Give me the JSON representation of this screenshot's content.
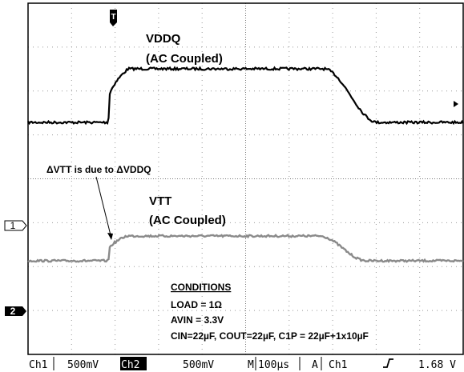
{
  "markers": {
    "trigger": "T",
    "ch1": "1",
    "ch2": "2"
  },
  "labels": {
    "vddq": "VDDQ",
    "vddq_note": "(AC Coupled)",
    "annotation": "ΔVTT is due to ΔVDDQ",
    "vtt": "VTT",
    "vtt_note": "(AC Coupled)"
  },
  "conditions": {
    "heading": "CONDITIONS",
    "lines": [
      "LOAD = 1Ω",
      "AVIN = 3.3V",
      "CIN=22µF, COUT=22µF, C1P = 22µF+1x10µF"
    ]
  },
  "status_bar": {
    "ch1": "Ch1",
    "ch1_scale": "500mV",
    "ch2": "Ch2",
    "ch2_scale": "500mV",
    "timebase_label": "M",
    "timebase": "100µs",
    "trigger_mode": "A",
    "trigger_source": "Ch1",
    "trigger_level": "1.68 V"
  }
}
